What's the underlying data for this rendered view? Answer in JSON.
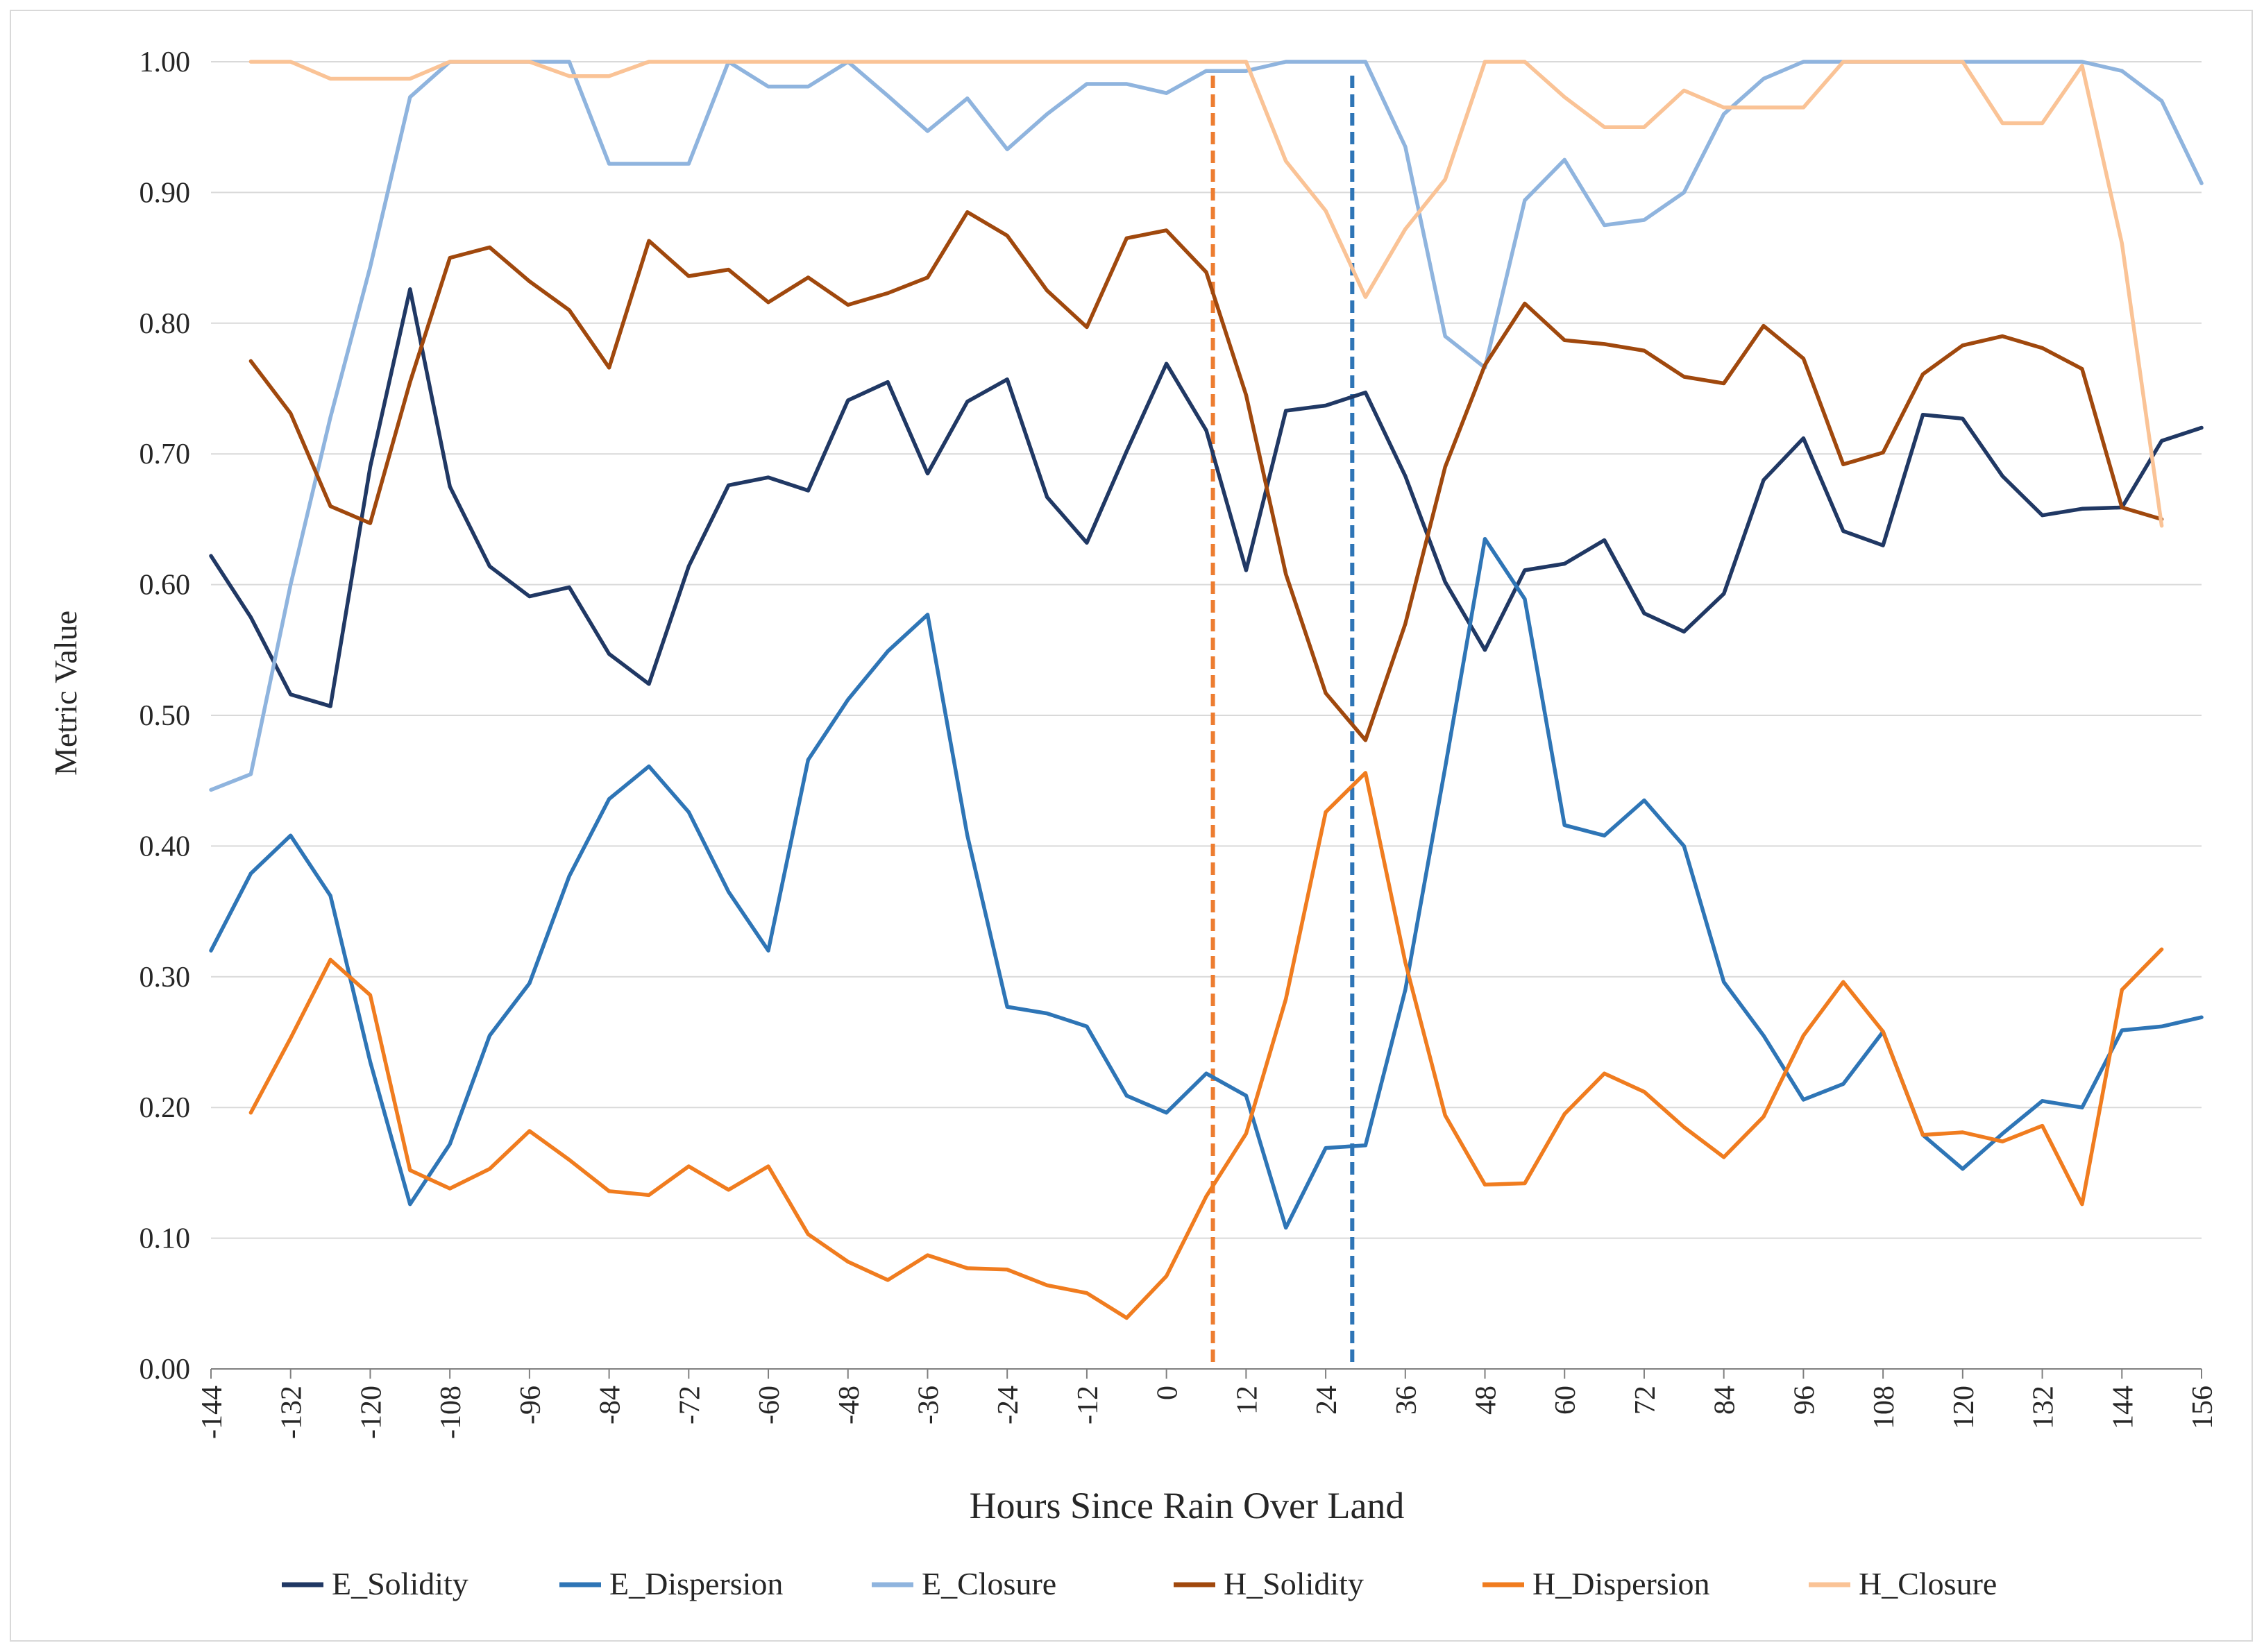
{
  "chart_data": {
    "type": "line",
    "title": "",
    "xlabel": "Hours Since Rain Over Land",
    "ylabel": "Metric Value",
    "xlim": [
      -144,
      156
    ],
    "ylim": [
      0,
      1
    ],
    "grid": true,
    "legend_position": "bottom",
    "x_ticks": [
      "-144",
      "-132",
      "-120",
      "-108",
      "-96",
      "-84",
      "-72",
      "-60",
      "-48",
      "-36",
      "-24",
      "-12",
      "0",
      "12",
      "24",
      "36",
      "48",
      "60",
      "72",
      "84",
      "96",
      "108",
      "120",
      "132",
      "144",
      "156"
    ],
    "y_ticks": [
      "0.00",
      "0.10",
      "0.20",
      "0.30",
      "0.40",
      "0.50",
      "0.60",
      "0.70",
      "0.80",
      "0.90",
      "1.00"
    ],
    "vertical_markers": [
      {
        "x": 7,
        "color": "#ED7D31",
        "style": "dashed"
      },
      {
        "x": 28,
        "color": "#2E75B6",
        "style": "dashed"
      }
    ],
    "series": [
      {
        "name": "E_Solidity",
        "color": "#203864",
        "x": [
          -144,
          -138,
          -132,
          -126,
          -120,
          -114,
          -108,
          -102,
          -96,
          -90,
          -84,
          -78,
          -72,
          -66,
          -60,
          -54,
          -48,
          -42,
          -36,
          -30,
          -24,
          -18,
          -12,
          -6,
          0,
          6,
          12,
          18,
          24,
          30,
          36,
          42,
          48,
          54,
          60,
          66,
          72,
          78,
          84,
          90,
          96,
          102,
          108,
          114,
          120,
          126,
          132,
          138,
          144,
          150,
          156
        ],
        "values": [
          0.622,
          0.575,
          0.516,
          0.507,
          0.69,
          0.826,
          0.675,
          0.614,
          0.591,
          0.598,
          0.547,
          0.524,
          0.614,
          0.676,
          0.682,
          0.672,
          0.741,
          0.755,
          0.685,
          0.74,
          0.757,
          0.667,
          0.632,
          0.702,
          0.769,
          0.718,
          0.611,
          0.733,
          0.737,
          0.747,
          0.683,
          0.602,
          0.55,
          0.611,
          0.616,
          0.634,
          0.578,
          0.564,
          0.593,
          0.68,
          0.712,
          0.641,
          0.63,
          0.73,
          0.727,
          0.683,
          0.653,
          0.658,
          0.659,
          0.71,
          0.72
        ]
      },
      {
        "name": "E_Dispersion",
        "color": "#2E75B6",
        "x": [
          -144,
          -138,
          -132,
          -126,
          -120,
          -114,
          -108,
          -102,
          -96,
          -90,
          -84,
          -78,
          -72,
          -66,
          -60,
          -54,
          -48,
          -42,
          -36,
          -30,
          -24,
          -18,
          -12,
          -6,
          0,
          6,
          12,
          18,
          24,
          30,
          36,
          42,
          48,
          54,
          60,
          66,
          72,
          78,
          84,
          90,
          96,
          102,
          108,
          114,
          120,
          126,
          132,
          138,
          144,
          150,
          156
        ],
        "values": [
          0.32,
          0.379,
          0.408,
          0.362,
          0.235,
          0.126,
          0.172,
          0.255,
          0.295,
          0.377,
          0.436,
          0.461,
          0.426,
          0.365,
          0.32,
          0.466,
          0.512,
          0.549,
          0.577,
          0.408,
          0.277,
          0.272,
          0.262,
          0.209,
          0.196,
          0.226,
          0.209,
          0.108,
          0.169,
          0.171,
          0.29,
          0.46,
          0.635,
          0.589,
          0.416,
          0.408,
          0.435,
          0.4,
          0.296,
          0.255,
          0.206,
          0.218,
          0.258,
          0.179,
          0.153,
          0.18,
          0.205,
          0.2,
          0.259,
          0.262,
          0.269
        ]
      },
      {
        "name": "E_Closure",
        "color": "#8FB4DE",
        "x": [
          -144,
          -138,
          -132,
          -126,
          -120,
          -114,
          -108,
          -102,
          -96,
          -90,
          -84,
          -78,
          -72,
          -66,
          -60,
          -54,
          -48,
          -42,
          -36,
          -30,
          -24,
          -18,
          -12,
          -6,
          0,
          6,
          12,
          18,
          24,
          30,
          36,
          42,
          48,
          54,
          60,
          66,
          72,
          78,
          84,
          90,
          96,
          102,
          108,
          114,
          120,
          126,
          132,
          138,
          144,
          150,
          156
        ],
        "values": [
          0.443,
          0.455,
          0.6,
          0.728,
          0.843,
          0.973,
          1.0,
          1.0,
          1.0,
          1.0,
          0.922,
          0.922,
          0.922,
          1.0,
          0.981,
          0.981,
          1.0,
          0.974,
          0.947,
          0.972,
          0.933,
          0.96,
          0.983,
          0.983,
          0.976,
          0.993,
          0.993,
          1.0,
          1.0,
          1.0,
          0.935,
          0.79,
          0.766,
          0.894,
          0.925,
          0.875,
          0.879,
          0.9,
          0.96,
          0.987,
          1.0,
          1.0,
          1.0,
          1.0,
          1.0,
          1.0,
          1.0,
          1.0,
          0.993,
          0.97,
          0.907
        ]
      },
      {
        "name": "H_Solidity",
        "color": "#A0480D",
        "x": [
          -138,
          -132,
          -126,
          -120,
          -114,
          -108,
          -102,
          -96,
          -90,
          -84,
          -78,
          -72,
          -66,
          -60,
          -54,
          -48,
          -42,
          -36,
          -30,
          -24,
          -18,
          -12,
          -6,
          0,
          6,
          12,
          18,
          24,
          30,
          36,
          42,
          48,
          54,
          60,
          66,
          72,
          78,
          84,
          90,
          96,
          102,
          108,
          114,
          120,
          126,
          132,
          138,
          144,
          150
        ],
        "values": [
          0.771,
          0.731,
          0.66,
          0.647,
          0.755,
          0.85,
          0.858,
          0.832,
          0.81,
          0.766,
          0.863,
          0.836,
          0.841,
          0.816,
          0.835,
          0.814,
          0.823,
          0.835,
          0.885,
          0.867,
          0.825,
          0.797,
          0.865,
          0.871,
          0.839,
          0.745,
          0.608,
          0.517,
          0.481,
          0.57,
          0.69,
          0.768,
          0.815,
          0.787,
          0.784,
          0.779,
          0.759,
          0.754,
          0.798,
          0.773,
          0.692,
          0.701,
          0.761,
          0.783,
          0.79,
          0.781,
          0.765,
          0.659,
          0.65
        ]
      },
      {
        "name": "H_Dispersion",
        "color": "#F07C1F",
        "x": [
          -138,
          -132,
          -126,
          -120,
          -114,
          -108,
          -102,
          -96,
          -90,
          -84,
          -78,
          -72,
          -66,
          -60,
          -54,
          -48,
          -42,
          -36,
          -30,
          -24,
          -18,
          -12,
          -6,
          0,
          6,
          12,
          18,
          24,
          30,
          36,
          42,
          48,
          54,
          60,
          66,
          72,
          78,
          84,
          90,
          96,
          102,
          108,
          114,
          120,
          126,
          132,
          138,
          144,
          150
        ],
        "values": [
          0.196,
          0.253,
          0.313,
          0.286,
          0.152,
          0.138,
          0.153,
          0.182,
          0.16,
          0.136,
          0.133,
          0.155,
          0.137,
          0.155,
          0.103,
          0.082,
          0.068,
          0.087,
          0.077,
          0.076,
          0.064,
          0.058,
          0.039,
          0.071,
          0.132,
          0.18,
          0.283,
          0.426,
          0.456,
          0.311,
          0.194,
          0.141,
          0.142,
          0.195,
          0.226,
          0.212,
          0.185,
          0.162,
          0.193,
          0.255,
          0.296,
          0.258,
          0.179,
          0.181,
          0.174,
          0.186,
          0.126,
          0.29,
          0.321
        ]
      },
      {
        "name": "H_Closure",
        "color": "#FAC396",
        "x": [
          -138,
          -132,
          -126,
          -120,
          -114,
          -108,
          -102,
          -96,
          -90,
          -84,
          -78,
          -72,
          -66,
          -60,
          -54,
          -48,
          -42,
          -36,
          -30,
          -24,
          -18,
          -12,
          -6,
          0,
          6,
          12,
          18,
          24,
          30,
          36,
          42,
          48,
          54,
          60,
          66,
          72,
          78,
          84,
          90,
          96,
          102,
          108,
          114,
          120,
          126,
          132,
          138,
          144,
          150
        ],
        "values": [
          1.0,
          1.0,
          0.987,
          0.987,
          0.987,
          1.0,
          1.0,
          1.0,
          0.989,
          0.989,
          1.0,
          1.0,
          1.0,
          1.0,
          1.0,
          1.0,
          1.0,
          1.0,
          1.0,
          1.0,
          1.0,
          1.0,
          1.0,
          1.0,
          1.0,
          1.0,
          0.924,
          0.886,
          0.82,
          0.872,
          0.91,
          1.0,
          1.0,
          0.973,
          0.95,
          0.95,
          0.978,
          0.965,
          0.965,
          0.965,
          1.0,
          1.0,
          1.0,
          1.0,
          0.953,
          0.953,
          0.997,
          0.861,
          0.645
        ]
      }
    ]
  }
}
